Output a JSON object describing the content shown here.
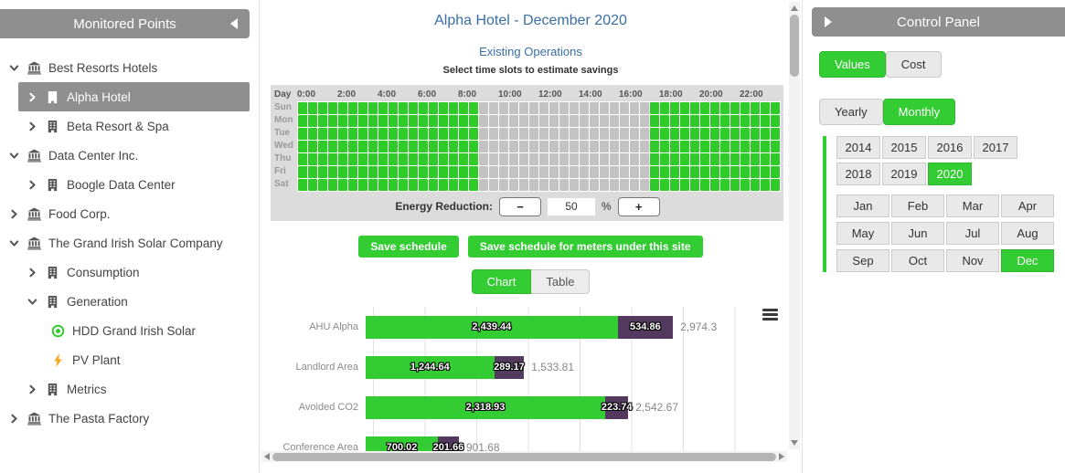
{
  "colors": {
    "accent_green": "#33cc33",
    "bar_purple": "#54395e",
    "title_blue": "#3a6ea5",
    "cell_gray": "#c3c3c3",
    "header_gray": "#8f8f8f"
  },
  "sidebar": {
    "title": "Monitored Points",
    "collapse_icon": "triangle-left-icon",
    "items": [
      {
        "label": "Best Resorts Hotels",
        "level": 0,
        "icon": "bank-icon",
        "expander": "down",
        "selected": false
      },
      {
        "label": "Alpha Hotel",
        "level": 1,
        "icon": "building-icon",
        "expander": "right",
        "selected": true
      },
      {
        "label": "Beta Resort & Spa",
        "level": 1,
        "icon": "building-icon",
        "expander": "right",
        "selected": false
      },
      {
        "label": "Data Center Inc.",
        "level": 0,
        "icon": "bank-icon",
        "expander": "down",
        "selected": false
      },
      {
        "label": "Boogle Data Center",
        "level": 1,
        "icon": "building-icon",
        "expander": "right",
        "selected": false
      },
      {
        "label": "Food Corp.",
        "level": 0,
        "icon": "bank-icon",
        "expander": "right",
        "selected": false
      },
      {
        "label": "The Grand Irish Solar Company",
        "level": 0,
        "icon": "bank-icon",
        "expander": "down",
        "selected": false
      },
      {
        "label": "Consumption",
        "level": 1,
        "icon": "building-icon",
        "expander": "right",
        "selected": false
      },
      {
        "label": "Generation",
        "level": 1,
        "icon": "building-icon",
        "expander": "down",
        "selected": false
      },
      {
        "label": "HDD Grand Irish Solar",
        "level": 2,
        "icon": "meter-icon",
        "expander": "none",
        "selected": false
      },
      {
        "label": "PV Plant",
        "level": 2,
        "icon": "pv-icon",
        "expander": "none",
        "selected": false
      },
      {
        "label": "Metrics",
        "level": 1,
        "icon": "building-icon",
        "expander": "right",
        "selected": false
      },
      {
        "label": "The Pasta Factory",
        "level": 0,
        "icon": "bank-icon",
        "expander": "right",
        "selected": false
      }
    ]
  },
  "main": {
    "title": "Alpha Hotel - December 2020",
    "subtitle": "Existing Operations",
    "hint": "Select time slots to estimate savings",
    "schedule": {
      "corner_label": "Day",
      "hours": [
        "0:00",
        "2:00",
        "4:00",
        "6:00",
        "8:00",
        "10:00",
        "12:00",
        "14:00",
        "16:00",
        "18:00",
        "20:00",
        "22:00"
      ],
      "days": [
        "Sun",
        "Mon",
        "Tue",
        "Wed",
        "Thu",
        "Fri",
        "Sat"
      ],
      "columns": 48,
      "selected_ranges": [
        [
          0,
          17
        ],
        [
          35,
          47
        ]
      ]
    },
    "energy_reduction": {
      "label": "Energy Reduction:",
      "minus": "−",
      "value": "50",
      "unit": "%",
      "plus": "+"
    },
    "save_button": "Save schedule",
    "save_all_button": "Save schedule for meters under this site",
    "view_toggle": {
      "chart": "Chart",
      "table": "Table",
      "active": "Chart"
    },
    "chart_menu_icon": "hamburger-menu-icon"
  },
  "control_panel": {
    "title": "Control Panel",
    "expand_icon": "triangle-right-icon",
    "metric_toggle": [
      {
        "label": "Values",
        "active": true
      },
      {
        "label": "Cost",
        "active": false
      }
    ],
    "period_toggle": [
      {
        "label": "Yearly",
        "active": false
      },
      {
        "label": "Monthly",
        "active": true
      }
    ],
    "years": [
      {
        "label": "2014",
        "active": false
      },
      {
        "label": "2015",
        "active": false
      },
      {
        "label": "2016",
        "active": false
      },
      {
        "label": "2017",
        "active": false
      },
      {
        "label": "2018",
        "active": false
      },
      {
        "label": "2019",
        "active": false
      },
      {
        "label": "2020",
        "active": true
      }
    ],
    "months": [
      {
        "label": "Jan",
        "active": false
      },
      {
        "label": "Feb",
        "active": false
      },
      {
        "label": "Mar",
        "active": false
      },
      {
        "label": "Apr",
        "active": false
      },
      {
        "label": "May",
        "active": false
      },
      {
        "label": "Jun",
        "active": false
      },
      {
        "label": "Jul",
        "active": false
      },
      {
        "label": "Aug",
        "active": false
      },
      {
        "label": "Sep",
        "active": false
      },
      {
        "label": "Oct",
        "active": false
      },
      {
        "label": "Nov",
        "active": false
      },
      {
        "label": "Dec",
        "active": true
      }
    ]
  },
  "chart_data": {
    "type": "bar",
    "orientation": "horizontal-stacked",
    "categories": [
      "AHU Alpha",
      "Landlord Area",
      "Avoided CO2",
      "Conference Area"
    ],
    "series": [
      {
        "name": "series-1",
        "color": "#33cc33",
        "values": [
          2439.44,
          1244.64,
          2318.93,
          700.02
        ],
        "labels": [
          "2,439.44",
          "1,244.64",
          "2,318.93",
          "700.02"
        ]
      },
      {
        "name": "series-2",
        "color": "#54395e",
        "values": [
          534.86,
          289.17,
          223.74,
          201.66
        ],
        "labels": [
          "534.86",
          "289.17",
          "223.74",
          "201.66"
        ]
      }
    ],
    "totals": [
      2974.3,
      1533.81,
      2542.67,
      901.68
    ],
    "total_labels": [
      "2,974.3",
      "1,533.81",
      "2,542.67",
      "901.68"
    ],
    "xlim": [
      0,
      3500
    ],
    "gridline_interval": 500,
    "grid": true,
    "legend": "none"
  }
}
